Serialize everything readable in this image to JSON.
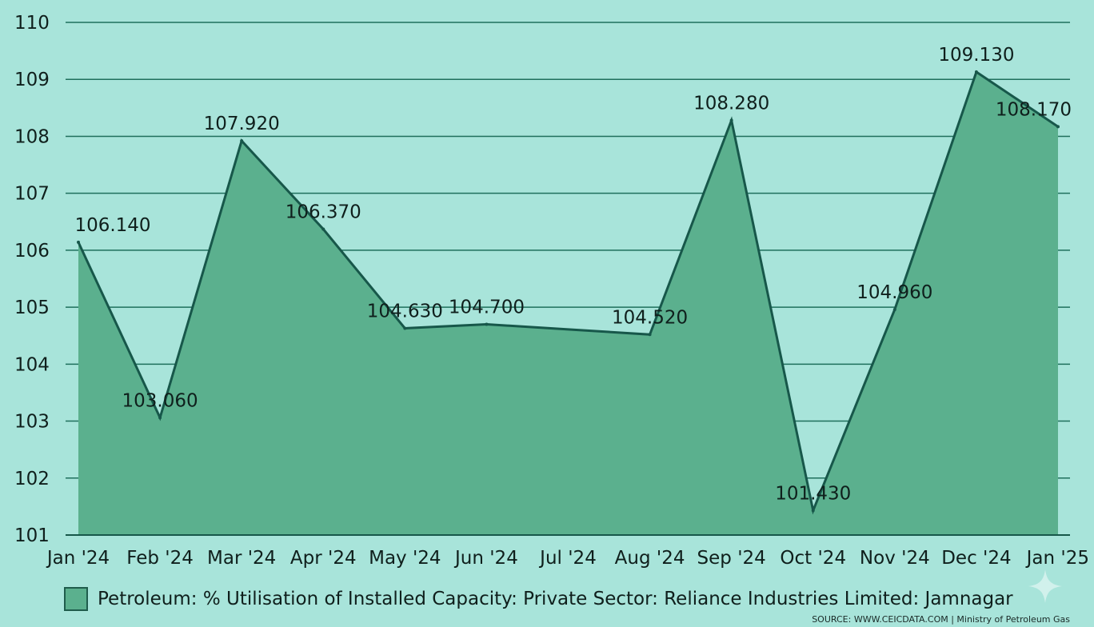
{
  "chart_data": {
    "type": "area",
    "categories": [
      "Jan '24",
      "Feb '24",
      "Mar '24",
      "Apr '24",
      "May '24",
      "Jun '24",
      "Jul '24",
      "Aug '24",
      "Sep '24",
      "Oct '24",
      "Nov '24",
      "Dec '24",
      "Jan '25"
    ],
    "series": [
      {
        "name": "Petroleum: % Utilisation of Installed Capacity: Private Sector: Reliance Industries Limited: Jamnagar",
        "values": [
          106.14,
          103.06,
          107.92,
          106.37,
          104.63,
          104.7,
          null,
          104.52,
          108.28,
          101.43,
          104.96,
          109.13,
          108.17
        ],
        "labels": [
          "106.140",
          "103.060",
          "107.920",
          "106.370",
          "104.630",
          "104.700",
          null,
          "104.520",
          "108.280",
          "101.430",
          "104.960",
          "109.130",
          "108.170"
        ]
      }
    ],
    "yticks": [
      "101",
      "102",
      "103",
      "104",
      "105",
      "106",
      "107",
      "108",
      "109",
      "110"
    ],
    "ylim": [
      101,
      110
    ],
    "grid": true,
    "legend_position": "bottom-left",
    "colors": {
      "background": "#a8e4da",
      "area_fill": "#5bb08e",
      "line": "#17574a",
      "grid": "#1f6f5c"
    }
  },
  "footer": {
    "source": "SOURCE: WWW.CEICDATA.COM | Ministry of Petroleum Gas"
  }
}
